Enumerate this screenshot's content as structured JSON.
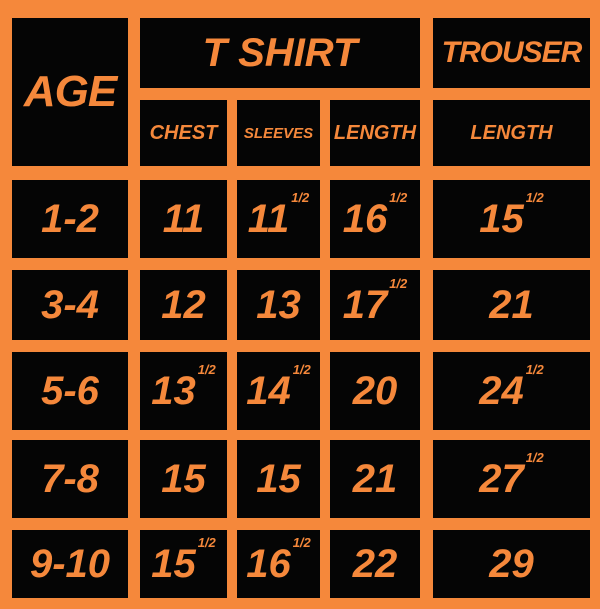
{
  "table": {
    "header": {
      "age": "AGE",
      "tshirt": "T SHIRT",
      "trouser": "TROUSER",
      "columns": [
        "CHEST",
        "SLEEVES",
        "LENGTH",
        "LENGTH"
      ]
    },
    "rows": [
      {
        "age": "1-2",
        "cells": [
          {
            "text": "11"
          },
          {
            "text": "11",
            "sup": "1/2"
          },
          {
            "text": "16",
            "sup": "1/2"
          },
          {
            "text": "15",
            "sup": "1/2"
          }
        ]
      },
      {
        "age": "3-4",
        "cells": [
          {
            "text": "12"
          },
          {
            "text": "13"
          },
          {
            "text": "17",
            "sup": "1/2"
          },
          {
            "text": "21"
          }
        ]
      },
      {
        "age": "5-6",
        "cells": [
          {
            "text": "13",
            "sup": "1/2"
          },
          {
            "text": "14",
            "sup": "1/2"
          },
          {
            "text": "20"
          },
          {
            "text": "24",
            "sup": "1/2"
          }
        ]
      },
      {
        "age": "7-8",
        "cells": [
          {
            "text": "15"
          },
          {
            "text": "15"
          },
          {
            "text": "21"
          },
          {
            "text": "27",
            "sup": "1/2"
          }
        ]
      },
      {
        "age": "9-10",
        "cells": [
          {
            "text": "15",
            "sup": "1/2"
          },
          {
            "text": "16",
            "sup": "1/2"
          },
          {
            "text": "22"
          },
          {
            "text": "29"
          }
        ]
      }
    ]
  }
}
